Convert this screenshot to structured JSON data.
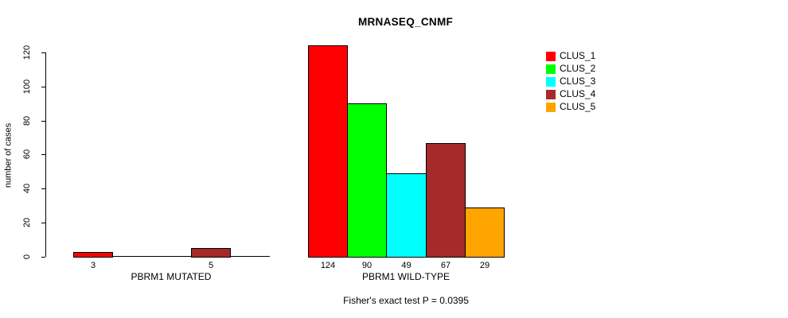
{
  "chart_data": {
    "type": "bar",
    "title": "MRNASEQ_CNMF",
    "ylabel": "number of cases",
    "xlabel": "",
    "ylim": [
      0,
      130
    ],
    "yticks": [
      0,
      20,
      40,
      60,
      80,
      100,
      120
    ],
    "grid": false,
    "legend_position": "right",
    "categories": [
      "PBRM1 MUTATED",
      "PBRM1 WILD-TYPE"
    ],
    "series": [
      {
        "name": "CLUS_1",
        "color": "#FF0000",
        "values": [
          3,
          124
        ]
      },
      {
        "name": "CLUS_2",
        "color": "#00FF00",
        "values": [
          0,
          90
        ]
      },
      {
        "name": "CLUS_3",
        "color": "#00FFFF",
        "values": [
          0,
          49
        ]
      },
      {
        "name": "CLUS_4",
        "color": "#A52A2A",
        "values": [
          5,
          67
        ]
      },
      {
        "name": "CLUS_5",
        "color": "#FFA500",
        "values": [
          0,
          29
        ]
      }
    ],
    "bar_labels": [
      [
        "3",
        "",
        "",
        "5",
        ""
      ],
      [
        "124",
        "90",
        "49",
        "67",
        "29"
      ]
    ],
    "annotation": "Fisher's exact test P = 0.0395"
  }
}
